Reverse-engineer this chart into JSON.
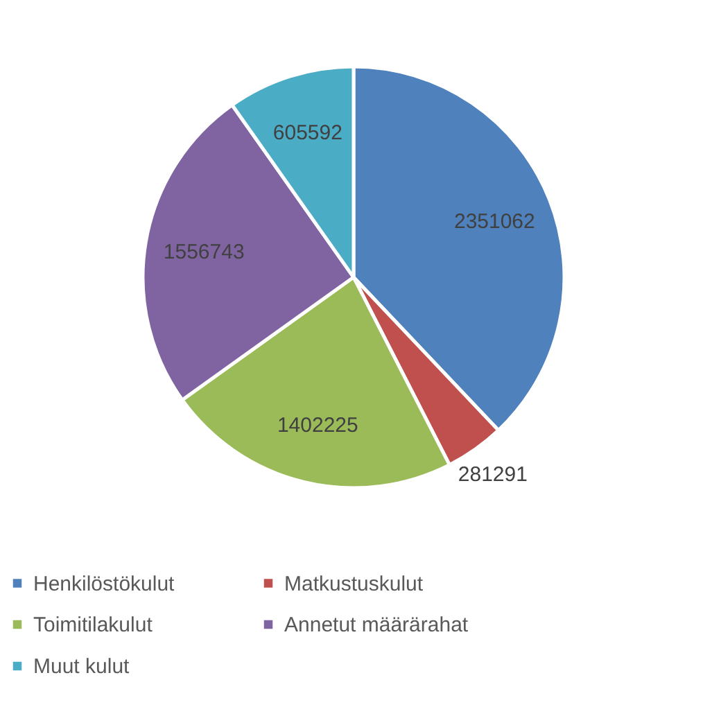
{
  "chart_data": {
    "type": "pie",
    "categories": [
      "Henkilöstökulut",
      "Matkustuskulut",
      "Toimitilakulut",
      "Annetut määrärahat",
      "Muut kulut"
    ],
    "values": [
      2351062,
      281291,
      1402225,
      1556743,
      605592
    ],
    "colors": [
      "#4f81bd",
      "#c0504d",
      "#9bbb59",
      "#8064a2",
      "#4bacc6"
    ],
    "data_labels": true,
    "legend": "bottom"
  }
}
